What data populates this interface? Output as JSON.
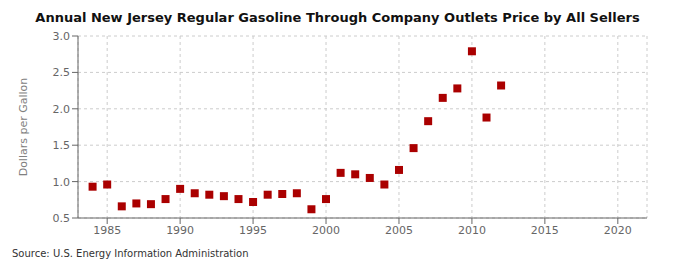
{
  "chart_data": {
    "type": "scatter",
    "title": "Annual New Jersey Regular Gasoline Through Company Outlets Price by All Sellers",
    "ylabel": "Dollars per Gallon",
    "annotation": "Source: U.S. Energy Information Administration",
    "x": [
      1984,
      1985,
      1986,
      1987,
      1988,
      1989,
      1990,
      1991,
      1992,
      1993,
      1994,
      1995,
      1996,
      1997,
      1998,
      1999,
      2000,
      2001,
      2002,
      2003,
      2004,
      2005,
      2006,
      2007,
      2008,
      2009,
      2010,
      2011,
      2012
    ],
    "values": [
      0.93,
      0.96,
      0.66,
      0.7,
      0.69,
      0.76,
      0.9,
      0.84,
      0.82,
      0.8,
      0.76,
      0.72,
      0.82,
      0.83,
      0.84,
      0.62,
      0.76,
      1.12,
      1.1,
      1.05,
      0.96,
      1.16,
      1.46,
      1.83,
      2.15,
      2.28,
      2.79,
      1.88,
      2.32
    ],
    "color": "#aa0000",
    "marker": "square",
    "xlim": [
      1983,
      2022
    ],
    "ylim": [
      0.5,
      3.0
    ],
    "xticks": [
      1985,
      1990,
      1995,
      2000,
      2005,
      2010,
      2015,
      2020
    ],
    "yticks": [
      0.5,
      {
        "value": 1.0,
        "label": "1.0"
      },
      1.5,
      {
        "value": 2.0,
        "label": "2.0"
      },
      2.5,
      {
        "value": 3.0,
        "label": "3.0"
      }
    ],
    "grid": true
  }
}
